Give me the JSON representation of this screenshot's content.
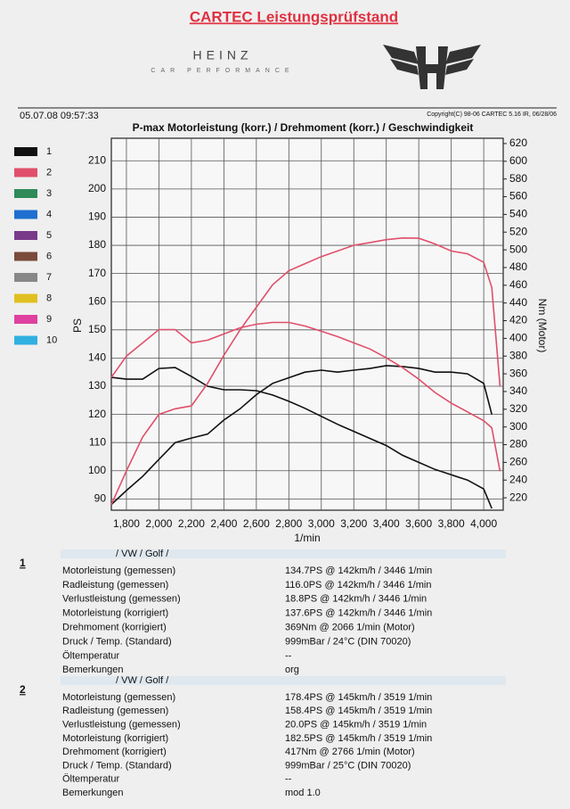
{
  "header": {
    "title": "CARTEC Leistungsprüfstand",
    "brand": "HEINZ",
    "brand_sub": "CAR PERFORMANCE",
    "date": "05.07.08 09:57:33",
    "copyright": "Copyright(C) 98-06 CARTEC 5.16 IR, 06/28/06"
  },
  "legend": [
    {
      "label": "1",
      "color": "#111111"
    },
    {
      "label": "2",
      "color": "#e0506a"
    },
    {
      "label": "3",
      "color": "#2e8b57"
    },
    {
      "label": "4",
      "color": "#1e6fd0"
    },
    {
      "label": "5",
      "color": "#7a3a8a"
    },
    {
      "label": "6",
      "color": "#7a4a3a"
    },
    {
      "label": "7",
      "color": "#888888"
    },
    {
      "label": "8",
      "color": "#e0c020"
    },
    {
      "label": "9",
      "color": "#e040a0"
    },
    {
      "label": "10",
      "color": "#30b0e0"
    }
  ],
  "chart_data": {
    "type": "line",
    "title": "P-max Motorleistung (korr.) / Drehmoment (korr.) / Geschwindigkeit",
    "x_label": "1/min",
    "y_label": "PS",
    "y2_label": "Nm (Motor)",
    "x": [
      1707,
      1800,
      1900,
      2000,
      2100,
      2200,
      2300,
      2400,
      2500,
      2600,
      2700,
      2800,
      2900,
      3000,
      3100,
      3200,
      3300,
      3400,
      3500,
      3600,
      3700,
      3800,
      3900,
      4000,
      4050,
      4100
    ],
    "xlim": [
      1707,
      4120
    ],
    "xticks": [
      {
        "value": 1800,
        "label": "1,800"
      },
      {
        "value": 2000,
        "label": "2,000"
      },
      {
        "value": 2200,
        "label": "2,200"
      },
      {
        "value": 2400,
        "label": "2,400"
      },
      {
        "value": 2600,
        "label": "2,600"
      },
      {
        "value": 2800,
        "label": "2,800"
      },
      {
        "value": 3000,
        "label": "3,000"
      },
      {
        "value": 3200,
        "label": "3,200"
      },
      {
        "value": 3400,
        "label": "3,400"
      },
      {
        "value": 3600,
        "label": "3,600"
      },
      {
        "value": 3800,
        "label": "3,800"
      },
      {
        "value": 4000,
        "label": "4,000"
      }
    ],
    "ylim": [
      86,
      218
    ],
    "yticks": [
      90,
      100,
      110,
      120,
      130,
      140,
      150,
      160,
      170,
      180,
      190,
      200,
      210
    ],
    "y2lim": [
      206,
      626
    ],
    "y2ticks": [
      220,
      240,
      260,
      280,
      300,
      320,
      340,
      360,
      380,
      400,
      420,
      440,
      460,
      480,
      500,
      520,
      540,
      560,
      580,
      600,
      620
    ],
    "grid": true,
    "series": [
      {
        "color": "#111111",
        "axis": "y",
        "values": [
          88,
          93,
          98,
          104,
          110,
          111.6,
          113,
          118,
          122,
          127,
          131,
          133,
          135,
          135.7,
          135,
          135.7,
          136.3,
          137.3,
          137,
          136.3,
          135,
          135,
          134.4,
          131,
          120,
          null
        ]
      },
      {
        "color": "#111111",
        "axis": "y2",
        "values": [
          356,
          354,
          354,
          366,
          367,
          357,
          346,
          342,
          342,
          341,
          336,
          329,
          321,
          312,
          303,
          295,
          287,
          279,
          268,
          260,
          252,
          246,
          240,
          230,
          208,
          null
        ]
      },
      {
        "color": "#e0506a",
        "axis": "y",
        "values": [
          88,
          100,
          112,
          120,
          122,
          123,
          131,
          141,
          150,
          158,
          166,
          171,
          173.5,
          176,
          178,
          180,
          181,
          182,
          182.6,
          182.5,
          180.5,
          178,
          177,
          174,
          165,
          130
        ]
      },
      {
        "color": "#e0506a",
        "axis": "y2",
        "values": [
          356,
          380,
          395,
          410,
          410,
          395,
          398,
          405,
          412,
          416,
          418,
          418,
          414,
          408,
          402,
          395,
          388,
          378,
          367,
          354,
          339,
          327,
          317,
          307,
          299,
          250
        ]
      }
    ]
  },
  "results": [
    {
      "number": "1",
      "vehicle": "/ VW / Golf /",
      "rows": [
        [
          "Motorleistung (gemessen)",
          "134.7PS @ 142km/h / 3446 1/min"
        ],
        [
          "Radleistung (gemessen)",
          "116.0PS @ 142km/h / 3446 1/min"
        ],
        [
          "Verlustleistung (gemessen)",
          "18.8PS @ 142km/h / 3446 1/min"
        ],
        [
          "Motorleistung (korrigiert)",
          "137.6PS @ 142km/h / 3446 1/min"
        ],
        [
          "Drehmoment (korrigiert)",
          "369Nm @ 2066 1/min (Motor)"
        ],
        [
          "Druck / Temp. (Standard)",
          "999mBar / 24°C   (DIN 70020)"
        ],
        [
          "Öltemperatur",
          "--"
        ],
        [
          "Bemerkungen",
          "org"
        ]
      ]
    },
    {
      "number": "2",
      "vehicle": "/ VW / Golf /",
      "rows": [
        [
          "Motorleistung (gemessen)",
          "178.4PS @ 145km/h / 3519 1/min"
        ],
        [
          "Radleistung (gemessen)",
          "158.4PS @ 145km/h / 3519 1/min"
        ],
        [
          "Verlustleistung (gemessen)",
          "20.0PS @ 145km/h / 3519 1/min"
        ],
        [
          "Motorleistung (korrigiert)",
          "182.5PS @ 145km/h / 3519 1/min"
        ],
        [
          "Drehmoment (korrigiert)",
          "417Nm @ 2766 1/min (Motor)"
        ],
        [
          "Druck / Temp. (Standard)",
          "999mBar / 25°C   (DIN 70020)"
        ],
        [
          "Öltemperatur",
          "--"
        ],
        [
          "Bemerkungen",
          "mod 1.0"
        ]
      ]
    }
  ]
}
